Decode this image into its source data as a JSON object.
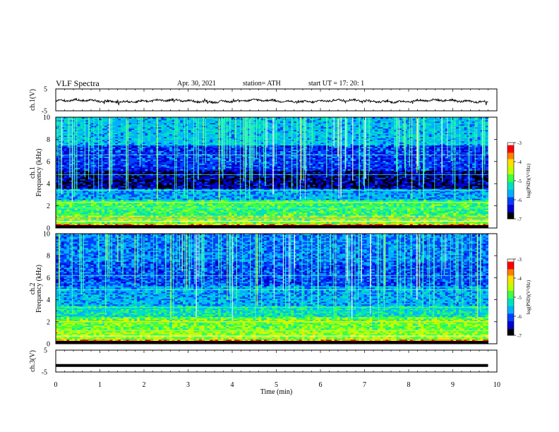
{
  "header": {
    "title": "VLF  Spectra",
    "date": "Apr. 30, 2021",
    "station": "station= ATH",
    "start": "start  UT  =    17: 20: 1"
  },
  "chart_data": [
    {
      "type": "line",
      "panel": "ch1-waveform",
      "ylabel": "ch.1(V)",
      "ylim": [
        -5,
        5
      ],
      "yticks": [
        "5",
        "-5"
      ],
      "xlim": [
        0,
        10
      ],
      "description_level": "noisy waveform around -0.5 V spanning 0 to ~9.8 min",
      "color": "#000000"
    },
    {
      "type": "heatmap",
      "panel": "ch1-spectrogram",
      "ylabel": "ch.1\nFrequency  (kHz)",
      "ylim": [
        0,
        10
      ],
      "yticks": [
        "0",
        "2",
        "4",
        "6",
        "8",
        "10"
      ],
      "xlim": [
        0,
        10
      ],
      "colorbar": {
        "label": "log(PSD)(V²/Hz)",
        "ticks": [
          "-3",
          "-4",
          "-5",
          "-6",
          "-7"
        ],
        "range": [
          -7,
          -3
        ]
      }
    },
    {
      "type": "heatmap",
      "panel": "ch2-spectrogram",
      "ylabel": "ch.2\nFrequency  (kHz)",
      "ylim": [
        0,
        10
      ],
      "yticks": [
        "0",
        "2",
        "4",
        "6",
        "8",
        "10"
      ],
      "xlim": [
        0,
        10
      ],
      "colorbar": {
        "label": "log(PSD)(V²/Hz)",
        "ticks": [
          "-3",
          "-4",
          "-5",
          "-6",
          "-7"
        ],
        "range": [
          -7,
          -3
        ]
      }
    },
    {
      "type": "line",
      "panel": "ch3-waveform",
      "ylabel": "ch.3(V)",
      "ylim": [
        -5,
        5
      ],
      "yticks": [
        "5",
        "-5"
      ],
      "xlim": [
        0,
        10
      ],
      "level": -2,
      "color": "#000000"
    }
  ],
  "xaxis": {
    "label": "Time  (min)",
    "ticks": [
      "0",
      "1",
      "2",
      "3",
      "4",
      "5",
      "6",
      "7",
      "8",
      "9",
      "10"
    ]
  },
  "colors": {
    "colormap": [
      "#000000",
      "#0000d0",
      "#0040ff",
      "#00b0ff",
      "#00e0c0",
      "#40ff40",
      "#c0ff00",
      "#ffe000",
      "#ff8000",
      "#ff0000",
      "#ffffff"
    ]
  }
}
